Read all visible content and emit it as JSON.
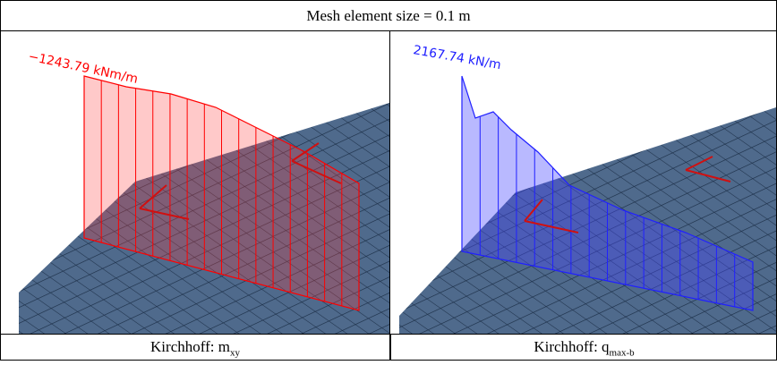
{
  "header": {
    "title": "Mesh element size = 0.1 m"
  },
  "panels": [
    {
      "annotation": "−1243.79 kNm/m",
      "caption": {
        "text": "Kirchhoff: m",
        "subscript": "xy"
      }
    },
    {
      "annotation": "2167.74 kN/m",
      "caption": {
        "text": "Kirchhoff: q",
        "subscript": "max-b"
      }
    }
  ]
}
